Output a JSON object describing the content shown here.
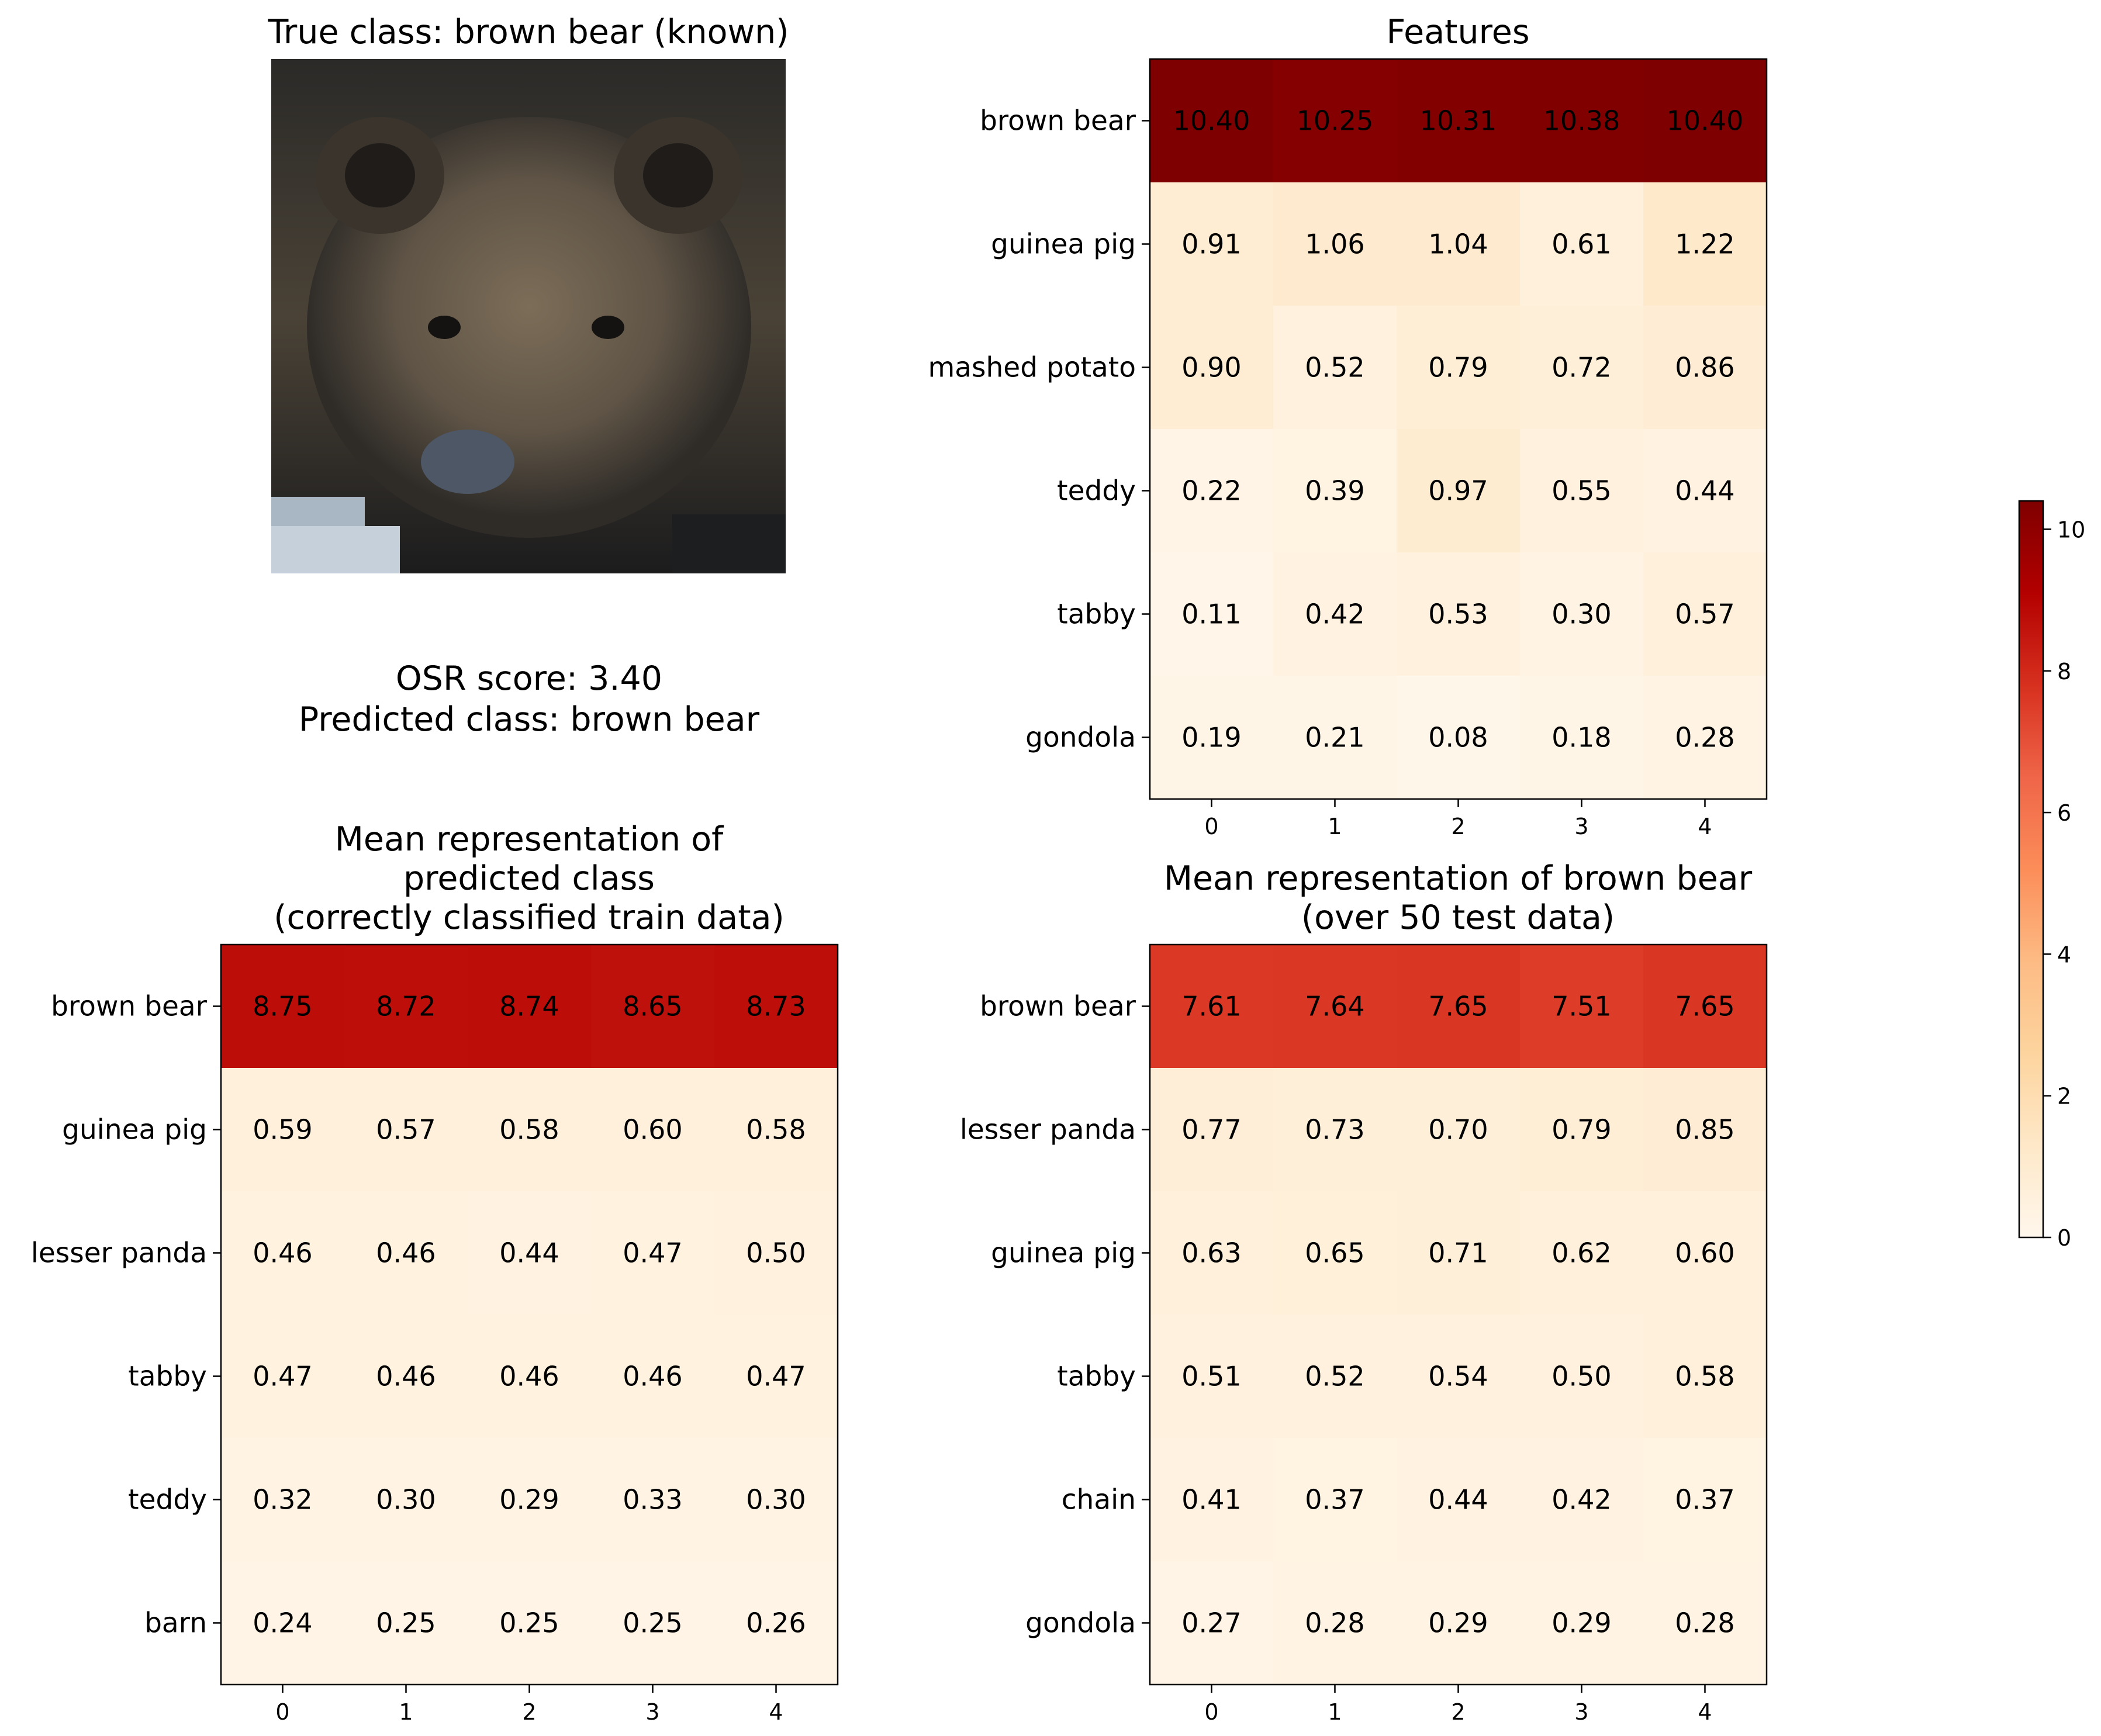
{
  "image_panel": {
    "title": "True class: brown bear (known)",
    "osr_line": "OSR score: 3.40",
    "pred_line": "Predicted class: brown bear"
  },
  "colors": {
    "cmap_stops": [
      "#fff7ec",
      "#fee8c8",
      "#fdd49e",
      "#fdbb84",
      "#fc8d59",
      "#ef6548",
      "#d7301f",
      "#b30000",
      "#7f0000"
    ]
  },
  "chart_data": [
    {
      "type": "heatmap",
      "title": "Features",
      "rows": [
        "brown bear",
        "guinea pig",
        "mashed potato",
        "teddy",
        "tabby",
        "gondola"
      ],
      "columns": [
        "0",
        "1",
        "2",
        "3",
        "4"
      ],
      "values": [
        [
          10.4,
          10.25,
          10.31,
          10.38,
          10.4
        ],
        [
          0.91,
          1.06,
          1.04,
          0.61,
          1.22
        ],
        [
          0.9,
          0.52,
          0.79,
          0.72,
          0.86
        ],
        [
          0.22,
          0.39,
          0.97,
          0.55,
          0.44
        ],
        [
          0.11,
          0.42,
          0.53,
          0.3,
          0.57
        ],
        [
          0.19,
          0.21,
          0.08,
          0.18,
          0.28
        ]
      ],
      "value_labels": [
        [
          "10.40",
          "10.25",
          "10.31",
          "10.38",
          "10.40"
        ],
        [
          "0.91",
          "1.06",
          "1.04",
          "0.61",
          "1.22"
        ],
        [
          "0.90",
          "0.52",
          "0.79",
          "0.72",
          "0.86"
        ],
        [
          "0.22",
          "0.39",
          "0.97",
          "0.55",
          "0.44"
        ],
        [
          "0.11",
          "0.42",
          "0.53",
          "0.30",
          "0.57"
        ],
        [
          "0.19",
          "0.21",
          "0.08",
          "0.18",
          "0.28"
        ]
      ],
      "vmin": 0,
      "vmax": 10.4
    },
    {
      "type": "heatmap",
      "title": "Mean representation of\npredicted class\n(correctly classified train data)",
      "rows": [
        "brown bear",
        "guinea pig",
        "lesser panda",
        "tabby",
        "teddy",
        "barn"
      ],
      "columns": [
        "0",
        "1",
        "2",
        "3",
        "4"
      ],
      "values": [
        [
          8.75,
          8.72,
          8.74,
          8.65,
          8.73
        ],
        [
          0.59,
          0.57,
          0.58,
          0.6,
          0.58
        ],
        [
          0.46,
          0.46,
          0.44,
          0.47,
          0.5
        ],
        [
          0.47,
          0.46,
          0.46,
          0.46,
          0.47
        ],
        [
          0.32,
          0.3,
          0.29,
          0.33,
          0.3
        ],
        [
          0.24,
          0.25,
          0.25,
          0.25,
          0.26
        ]
      ],
      "value_labels": [
        [
          "8.75",
          "8.72",
          "8.74",
          "8.65",
          "8.73"
        ],
        [
          "0.59",
          "0.57",
          "0.58",
          "0.60",
          "0.58"
        ],
        [
          "0.46",
          "0.46",
          "0.44",
          "0.47",
          "0.50"
        ],
        [
          "0.47",
          "0.46",
          "0.46",
          "0.46",
          "0.47"
        ],
        [
          "0.32",
          "0.30",
          "0.29",
          "0.33",
          "0.30"
        ],
        [
          "0.24",
          "0.25",
          "0.25",
          "0.25",
          "0.26"
        ]
      ],
      "vmin": 0,
      "vmax": 10.4
    },
    {
      "type": "heatmap",
      "title": "Mean representation of brown bear\n(over 50 test data)",
      "rows": [
        "brown bear",
        "lesser panda",
        "guinea pig",
        "tabby",
        "chain",
        "gondola"
      ],
      "columns": [
        "0",
        "1",
        "2",
        "3",
        "4"
      ],
      "values": [
        [
          7.61,
          7.64,
          7.65,
          7.51,
          7.65
        ],
        [
          0.77,
          0.73,
          0.7,
          0.79,
          0.85
        ],
        [
          0.63,
          0.65,
          0.71,
          0.62,
          0.6
        ],
        [
          0.51,
          0.52,
          0.54,
          0.5,
          0.58
        ],
        [
          0.41,
          0.37,
          0.44,
          0.42,
          0.37
        ],
        [
          0.27,
          0.28,
          0.29,
          0.29,
          0.28
        ]
      ],
      "value_labels": [
        [
          "7.61",
          "7.64",
          "7.65",
          "7.51",
          "7.65"
        ],
        [
          "0.77",
          "0.73",
          "0.70",
          "0.79",
          "0.85"
        ],
        [
          "0.63",
          "0.65",
          "0.71",
          "0.62",
          "0.60"
        ],
        [
          "0.51",
          "0.52",
          "0.54",
          "0.50",
          "0.58"
        ],
        [
          "0.41",
          "0.37",
          "0.44",
          "0.42",
          "0.37"
        ],
        [
          "0.27",
          "0.28",
          "0.29",
          "0.29",
          "0.28"
        ]
      ],
      "vmin": 0,
      "vmax": 10.4
    },
    {
      "type": "colorbar",
      "ticks": [
        "0",
        "2",
        "4",
        "6",
        "8",
        "10"
      ],
      "tick_values": [
        0,
        2,
        4,
        6,
        8,
        10
      ],
      "vmin": 0,
      "vmax": 10.4
    }
  ]
}
